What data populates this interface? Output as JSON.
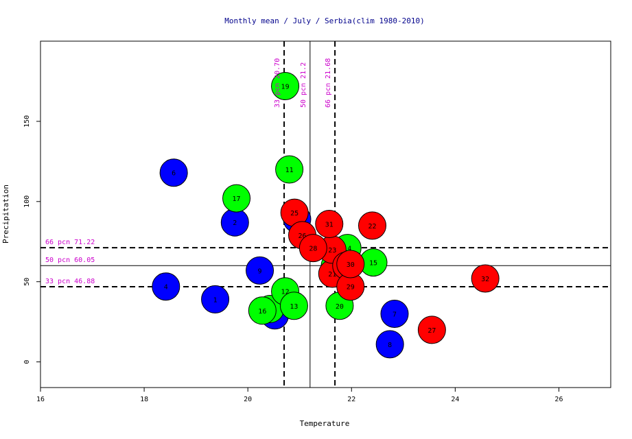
{
  "chart_data": {
    "type": "scatter",
    "title": "Monthly mean / July / Serbia(clim 1980-2010)",
    "xlabel": "Temperature",
    "ylabel": "Precipitation",
    "xlim": [
      16,
      27
    ],
    "ylim": [
      -16,
      200
    ],
    "xticks": [
      16,
      18,
      20,
      22,
      24,
      26
    ],
    "yticks": [
      0,
      50,
      100,
      150
    ],
    "grid": false,
    "colors": {
      "low": "#0000ff",
      "mid": "#00ff00",
      "high": "#ff0000",
      "title": "#00008b",
      "annotation": "#cc00cc"
    },
    "reference_lines": {
      "vertical": [
        {
          "label": "33 pcn 20.70",
          "value": 20.7,
          "style": "dashed"
        },
        {
          "label": "50 pcn 21.2",
          "value": 21.2,
          "style": "solid"
        },
        {
          "label": "66 pcn 21.68",
          "value": 21.68,
          "style": "dashed"
        }
      ],
      "horizontal": [
        {
          "label": "66 pcn 71.22",
          "value": 71.22,
          "style": "dashed"
        },
        {
          "label": "50 pcn 60.05",
          "value": 60.05,
          "style": "solid"
        },
        {
          "label": "33 pcn 46.88",
          "value": 46.88,
          "style": "dashed"
        }
      ]
    },
    "points": [
      {
        "label": "1",
        "x": 19.37,
        "y": 39,
        "group": "low"
      },
      {
        "label": "2",
        "x": 19.75,
        "y": 87,
        "group": "low"
      },
      {
        "label": "3",
        "x": 20.95,
        "y": 89,
        "group": "low"
      },
      {
        "label": "4",
        "x": 18.42,
        "y": 47,
        "group": "low"
      },
      {
        "label": "5",
        "x": 20.52,
        "y": 29,
        "group": "low"
      },
      {
        "label": "6",
        "x": 18.57,
        "y": 118,
        "group": "low"
      },
      {
        "label": "7",
        "x": 22.83,
        "y": 30,
        "group": "low"
      },
      {
        "label": "8",
        "x": 22.74,
        "y": 11,
        "group": "low"
      },
      {
        "label": "9",
        "x": 20.23,
        "y": 57,
        "group": "low"
      },
      {
        "label": "10",
        "x": 20.43,
        "y": 33,
        "group": "mid"
      },
      {
        "label": "11",
        "x": 20.8,
        "y": 120,
        "group": "mid"
      },
      {
        "label": "12",
        "x": 20.72,
        "y": 44,
        "group": "mid"
      },
      {
        "label": "13",
        "x": 20.89,
        "y": 35,
        "group": "mid"
      },
      {
        "label": "14",
        "x": 21.92,
        "y": 71,
        "group": "mid"
      },
      {
        "label": "15",
        "x": 22.42,
        "y": 62,
        "group": "mid"
      },
      {
        "label": "16",
        "x": 20.28,
        "y": 32,
        "group": "mid"
      },
      {
        "label": "17",
        "x": 19.78,
        "y": 102,
        "group": "mid"
      },
      {
        "label": "18",
        "x": 21.68,
        "y": 60,
        "group": "mid"
      },
      {
        "label": "19",
        "x": 20.72,
        "y": 172,
        "group": "mid"
      },
      {
        "label": "20",
        "x": 21.77,
        "y": 35,
        "group": "mid"
      },
      {
        "label": "21",
        "x": 21.63,
        "y": 55,
        "group": "high"
      },
      {
        "label": "22",
        "x": 22.4,
        "y": 85,
        "group": "high"
      },
      {
        "label": "23",
        "x": 21.63,
        "y": 70,
        "group": "high"
      },
      {
        "label": "24",
        "x": 21.9,
        "y": 60,
        "group": "high"
      },
      {
        "label": "25",
        "x": 20.9,
        "y": 93,
        "group": "high"
      },
      {
        "label": "26",
        "x": 21.05,
        "y": 79,
        "group": "high"
      },
      {
        "label": "27",
        "x": 23.55,
        "y": 20,
        "group": "high"
      },
      {
        "label": "28",
        "x": 21.26,
        "y": 71,
        "group": "high"
      },
      {
        "label": "29",
        "x": 21.98,
        "y": 47,
        "group": "high"
      },
      {
        "label": "30",
        "x": 21.98,
        "y": 61,
        "group": "high"
      },
      {
        "label": "31",
        "x": 21.57,
        "y": 86,
        "group": "high"
      },
      {
        "label": "32",
        "x": 24.58,
        "y": 52,
        "group": "high"
      }
    ]
  }
}
